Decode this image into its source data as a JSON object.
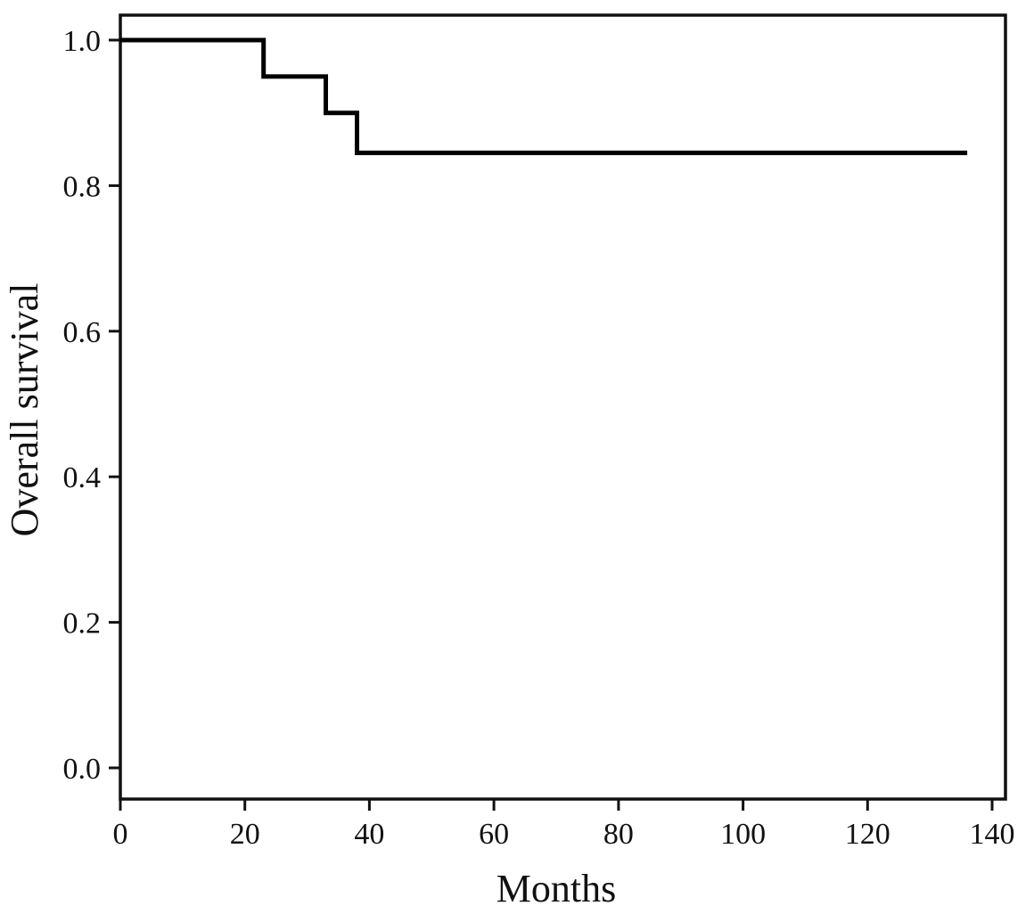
{
  "chart_data": {
    "type": "line",
    "subtype": "kaplan-meier-step",
    "title": "",
    "xlabel": "Months",
    "ylabel": "Overall survival",
    "xlim": [
      0,
      140
    ],
    "ylim": [
      0.0,
      1.0
    ],
    "xticks": [
      0,
      20,
      40,
      60,
      80,
      100,
      120,
      140
    ],
    "xtick_labels": [
      "0",
      "20",
      "40",
      "60",
      "80",
      "100",
      "120",
      "140"
    ],
    "yticks": [
      0.0,
      0.2,
      0.4,
      0.6,
      0.8,
      1.0
    ],
    "ytick_labels": [
      "0.0",
      "0.2",
      "0.4",
      "0.6",
      "0.8",
      "1.0"
    ],
    "grid": false,
    "legend": "none",
    "frame": true,
    "line_color": "#000000",
    "background_color": "#ffffff",
    "series": [
      {
        "name": "Overall survival",
        "step": "post",
        "points": [
          {
            "x": 0,
            "y": 1.0
          },
          {
            "x": 23,
            "y": 0.95
          },
          {
            "x": 33,
            "y": 0.9
          },
          {
            "x": 38,
            "y": 0.845
          },
          {
            "x": 136,
            "y": 0.845
          }
        ]
      }
    ]
  }
}
